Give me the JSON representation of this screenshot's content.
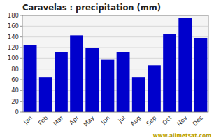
{
  "chart_data": {
    "type": "bar",
    "title": "Caravelas : precipitation (mm)",
    "categories": [
      "Jan",
      "Feb",
      "Mar",
      "Apr",
      "May",
      "Jun",
      "Jul",
      "Aug",
      "Sep",
      "Oct",
      "Nov",
      "Dec"
    ],
    "values": [
      125,
      65,
      112,
      143,
      120,
      97,
      112,
      65,
      87,
      145,
      175,
      137
    ],
    "color": "#0000CC",
    "ylim": [
      0,
      180
    ],
    "yticks": [
      0,
      20,
      40,
      60,
      80,
      100,
      120,
      140,
      160,
      180
    ],
    "grid": true,
    "annotations": [
      "www.allmetsat.com"
    ]
  }
}
